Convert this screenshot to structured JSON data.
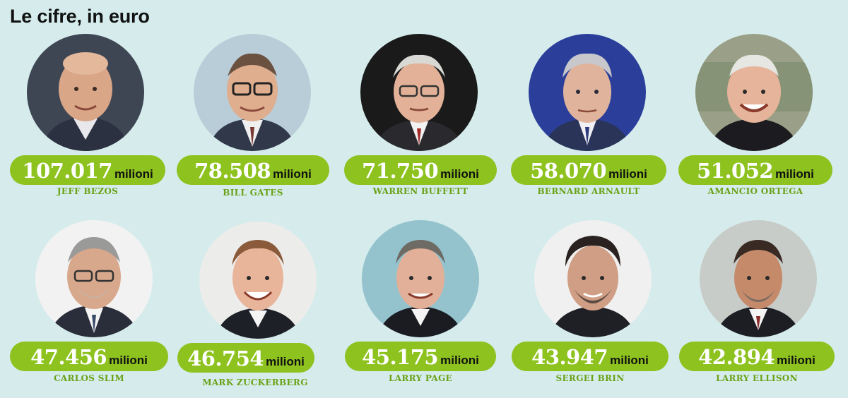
{
  "title": "Le cifre, in euro",
  "colors": {
    "background": "#d6ecec",
    "pill": "#8dc21f",
    "amount_text": "#ffffff",
    "name_text": "#6aa218"
  },
  "people": [
    {
      "name": "JEFF BEZOS",
      "amount": "107.017",
      "unit": "milioni"
    },
    {
      "name": "BILL GATES",
      "amount": "78.508",
      "unit": "milioni"
    },
    {
      "name": "WARREN BUFFETT",
      "amount": "71.750",
      "unit": "milioni"
    },
    {
      "name": "BERNARD ARNAULT",
      "amount": "58.070",
      "unit": "milioni"
    },
    {
      "name": "AMANCIO ORTEGA",
      "amount": "51.052",
      "unit": "milioni"
    },
    {
      "name": "CARLOS SLIM",
      "amount": "47.456",
      "unit": "milioni"
    },
    {
      "name": "MARK ZUCKERBERG",
      "amount": "46.754",
      "unit": "milioni"
    },
    {
      "name": "LARRY PAGE",
      "amount": "45.175",
      "unit": "milioni"
    },
    {
      "name": "SERGEI BRIN",
      "amount": "43.947",
      "unit": "milioni"
    },
    {
      "name": "LARRY ELLISON",
      "amount": "42.894",
      "unit": "milioni"
    }
  ]
}
